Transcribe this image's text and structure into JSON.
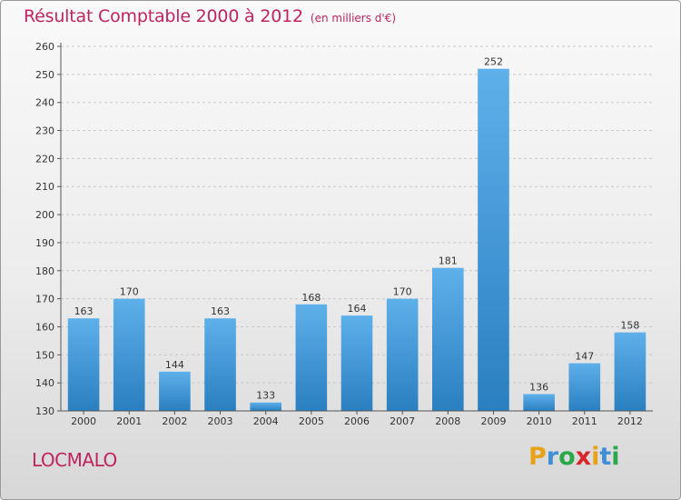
{
  "header": {
    "title": "Résultat Comptable 2000 à 2012",
    "subtitle": "(en milliers d'€)"
  },
  "footer": {
    "commune": "LOCMALO",
    "brand": "Proxiti",
    "brand_letters": [
      {
        "char": "P",
        "color": "#e8a21a"
      },
      {
        "char": "r",
        "color": "#3f8fd6"
      },
      {
        "char": "o",
        "color": "#2aa84a"
      },
      {
        "char": "x",
        "color": "#d8262c"
      },
      {
        "char": "i",
        "color": "#e8a21a"
      },
      {
        "char": "t",
        "color": "#3f8fd6"
      },
      {
        "char": "i",
        "color": "#2aa84a"
      }
    ]
  },
  "colors": {
    "accent": "#c0235f",
    "bar_top": "#5eb0ea",
    "bar_bottom": "#2a7fc0"
  },
  "chart_data": {
    "type": "bar",
    "title": "Résultat Comptable 2000 à 2012",
    "subtitle": "(en milliers d'€)",
    "xlabel": "",
    "ylabel": "",
    "categories": [
      "2000",
      "2001",
      "2002",
      "2003",
      "2004",
      "2005",
      "2006",
      "2007",
      "2008",
      "2009",
      "2010",
      "2011",
      "2012"
    ],
    "values": [
      163,
      170,
      144,
      163,
      133,
      168,
      164,
      170,
      181,
      252,
      136,
      147,
      158
    ],
    "ylim": [
      130,
      260
    ],
    "yticks": [
      130,
      140,
      150,
      160,
      170,
      180,
      190,
      200,
      210,
      220,
      230,
      240,
      250,
      260
    ],
    "grid": true,
    "legend": "none"
  }
}
